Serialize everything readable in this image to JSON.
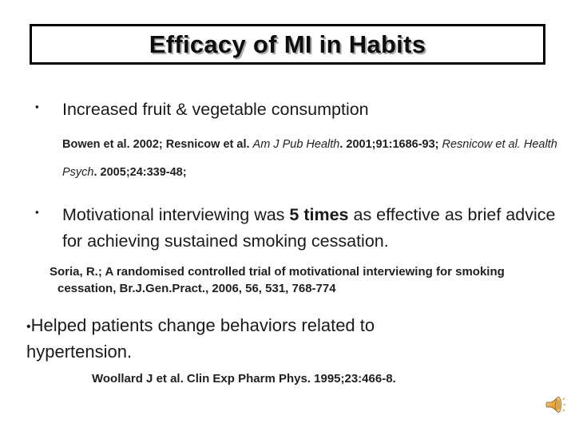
{
  "slide": {
    "title": "Efficacy of MI in Habits",
    "bullet1": {
      "marker": "▪",
      "segments": [
        {
          "t": "Increased fruit & vegetable consumption"
        }
      ],
      "citation": [
        {
          "t": "Bowen et al. 2002; Resnicow  et al. "
        },
        {
          "t": "Am J Pub Health",
          "i": true
        },
        {
          "t": ".  2001;91:1686-93; "
        },
        {
          "t": "Resnicow et al. Health Psych",
          "i": true
        },
        {
          "t": ". 2005;24:339-48;"
        }
      ]
    },
    "bullet2": {
      "marker": "▪",
      "segments": [
        {
          "t": "Motivational interviewing was "
        },
        {
          "t": "5 times",
          "b": true
        },
        {
          "t": " as effective as brief advice for achieving sustained smoking cessation."
        }
      ],
      "citation": [
        {
          "t": "Soria, R.; A randomised controlled trial of motivational interviewing for smoking cessation, Br.J.Gen.Pract., 2006, 56, 531, 768-774"
        }
      ]
    },
    "bullet3": {
      "marker": "•",
      "segments": [
        {
          "t": "Helped patients change behaviors related to hypertension."
        }
      ],
      "citation": [
        {
          "t": "Woollard J et al.  Clin Exp Pharm Phys.  1995;23:466-8."
        }
      ]
    },
    "icons": {
      "audio": "audio-speaker-icon"
    },
    "colors": {
      "title_text": "#0d0d0d",
      "title_shadow": "#ababab",
      "box_border": "#000000",
      "body_text": "#1a1a1a",
      "speaker_gold_dark": "#c8871f",
      "speaker_gold_light": "#f9d98a",
      "speaker_outline": "#8a5a1a"
    }
  }
}
